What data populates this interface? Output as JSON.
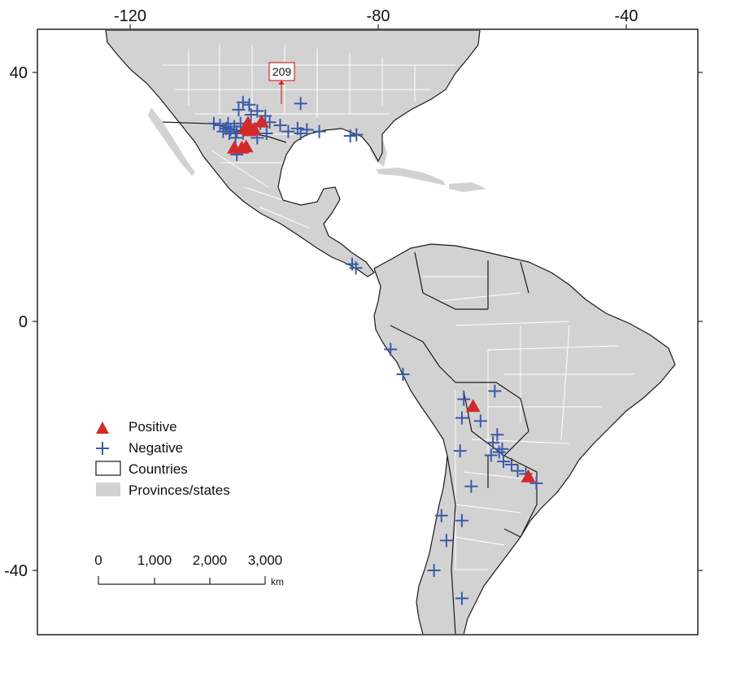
{
  "map": {
    "axes": {
      "x_ticks": [
        "-120",
        "-80",
        "-40"
      ],
      "y_ticks": [
        "40",
        "0",
        "-40"
      ]
    },
    "legend": {
      "positive": "Positive",
      "negative": "Negative",
      "countries": "Countries",
      "provinces": "Provinces/states"
    },
    "scale_bar": {
      "labels": [
        "0",
        "1,000",
        "2,000",
        "3,000"
      ],
      "unit": "km"
    },
    "callout": {
      "label": "209"
    },
    "colors": {
      "land": "#d2d2d2",
      "water": "#ffffff",
      "state_border": "#ffffff",
      "country_border": "#1a1a1a",
      "positive": "#d22a2a",
      "negative": "#3a5aa8"
    },
    "positive_sites": [
      {
        "lon": -101.5,
        "lat": 31.2
      },
      {
        "lon": -100.8,
        "lat": 30.8
      },
      {
        "lon": -100.0,
        "lat": 31.0
      },
      {
        "lon": -98.8,
        "lat": 32.2
      },
      {
        "lon": -101.0,
        "lat": 32.0
      },
      {
        "lon": -103.2,
        "lat": 28.0
      },
      {
        "lon": -102.0,
        "lat": 28.0
      },
      {
        "lon": -101.3,
        "lat": 28.2
      },
      {
        "lon": -64.7,
        "lat": -13.5
      },
      {
        "lon": -55.8,
        "lat": -24.8
      }
    ],
    "negative_sites": [
      {
        "lon": -106.5,
        "lat": 31.8
      },
      {
        "lon": -105.5,
        "lat": 31.5
      },
      {
        "lon": -105.0,
        "lat": 30.5
      },
      {
        "lon": -104.5,
        "lat": 31.0
      },
      {
        "lon": -104.0,
        "lat": 30.2
      },
      {
        "lon": -104.2,
        "lat": 31.8
      },
      {
        "lon": -103.8,
        "lat": 30.8
      },
      {
        "lon": -103.2,
        "lat": 31.3
      },
      {
        "lon": -102.8,
        "lat": 30.5
      },
      {
        "lon": -102.2,
        "lat": 31.8
      },
      {
        "lon": -101.8,
        "lat": 30.2
      },
      {
        "lon": -103.0,
        "lat": 29.5
      },
      {
        "lon": -102.5,
        "lat": 34.0
      },
      {
        "lon": -101.8,
        "lat": 35.2
      },
      {
        "lon": -100.8,
        "lat": 34.8
      },
      {
        "lon": -100.5,
        "lat": 33.2
      },
      {
        "lon": -99.5,
        "lat": 33.8
      },
      {
        "lon": -98.2,
        "lat": 33.0
      },
      {
        "lon": -99.0,
        "lat": 31.8
      },
      {
        "lon": -98.0,
        "lat": 30.2
      },
      {
        "lon": -97.5,
        "lat": 32.0
      },
      {
        "lon": -99.5,
        "lat": 29.5
      },
      {
        "lon": -102.8,
        "lat": 26.8
      },
      {
        "lon": -94.5,
        "lat": 30.5
      },
      {
        "lon": -93.0,
        "lat": 31.0
      },
      {
        "lon": -92.5,
        "lat": 30.2
      },
      {
        "lon": -91.5,
        "lat": 30.8
      },
      {
        "lon": -89.5,
        "lat": 30.5
      },
      {
        "lon": -92.5,
        "lat": 35.0
      },
      {
        "lon": -84.5,
        "lat": 29.8
      },
      {
        "lon": -83.5,
        "lat": 30.0
      },
      {
        "lon": -95.8,
        "lat": 31.5
      },
      {
        "lon": -84.2,
        "lat": 9.2
      },
      {
        "lon": -83.6,
        "lat": 8.6
      },
      {
        "lon": -78.0,
        "lat": -4.5
      },
      {
        "lon": -76.0,
        "lat": -8.5
      },
      {
        "lon": -61.2,
        "lat": -11.2
      },
      {
        "lon": -66.2,
        "lat": -12.5
      },
      {
        "lon": -66.5,
        "lat": -15.5
      },
      {
        "lon": -63.5,
        "lat": -16.0
      },
      {
        "lon": -60.8,
        "lat": -18.2
      },
      {
        "lon": -61.5,
        "lat": -19.5
      },
      {
        "lon": -60.0,
        "lat": -20.5
      },
      {
        "lon": -60.5,
        "lat": -21.0
      },
      {
        "lon": -61.8,
        "lat": -21.5
      },
      {
        "lon": -59.8,
        "lat": -22.5
      },
      {
        "lon": -58.5,
        "lat": -23.0
      },
      {
        "lon": -57.5,
        "lat": -24.0
      },
      {
        "lon": -56.2,
        "lat": -24.5
      },
      {
        "lon": -54.5,
        "lat": -26.0
      },
      {
        "lon": -66.8,
        "lat": -20.8
      },
      {
        "lon": -65.0,
        "lat": -26.5
      },
      {
        "lon": -69.8,
        "lat": -31.2
      },
      {
        "lon": -66.5,
        "lat": -32.0
      },
      {
        "lon": -69.0,
        "lat": -35.2
      },
      {
        "lon": -71.0,
        "lat": -40.0
      },
      {
        "lon": -66.5,
        "lat": -44.5
      }
    ]
  }
}
